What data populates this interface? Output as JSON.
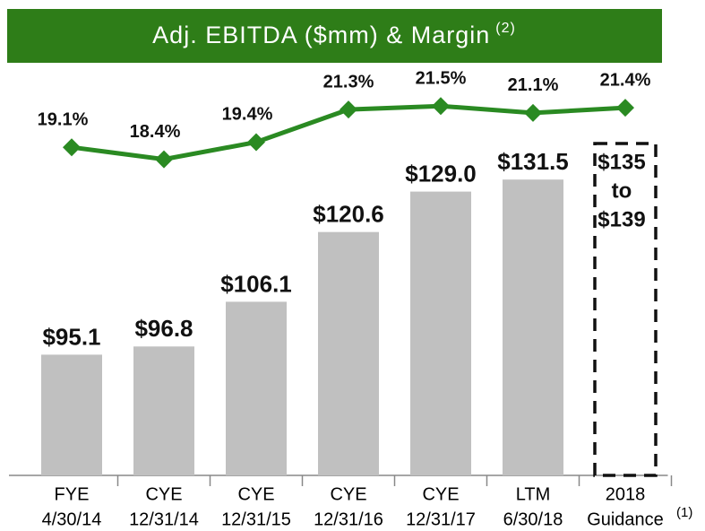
{
  "chart_data": {
    "type": "bar",
    "title": "Adj. EBITDA ($mm) & Margin",
    "title_note": "(2)",
    "categories": [
      [
        "FYE",
        "4/30/14"
      ],
      [
        "CYE",
        "12/31/14"
      ],
      [
        "CYE",
        "12/31/15"
      ],
      [
        "CYE",
        "12/31/16"
      ],
      [
        "CYE",
        "12/31/17"
      ],
      [
        "LTM",
        "6/30/18"
      ],
      [
        "2018",
        "Guidance"
      ]
    ],
    "category_note": "(1)",
    "ylim": [
      70,
      150
    ],
    "y2lim": [
      0,
      22.4
    ],
    "series": [
      {
        "name": "Adj. EBITDA",
        "type": "bar",
        "color": "#c0c0c0",
        "values": [
          95.1,
          96.8,
          106.1,
          120.6,
          129.0,
          131.5,
          null
        ],
        "value_labels": [
          "$95.1",
          "$96.8",
          "$106.1",
          "$120.6",
          "$129.0",
          "$131.5",
          null
        ]
      },
      {
        "name": "Margin",
        "type": "line",
        "axis": "y2",
        "color": "#2a8a22",
        "values": [
          19.1,
          18.4,
          19.4,
          21.3,
          21.5,
          21.1,
          21.4
        ],
        "value_labels": [
          "19.1%",
          "18.4%",
          "19.4%",
          "21.3%",
          "21.5%",
          "21.1%",
          "21.4%"
        ]
      }
    ],
    "guidance": {
      "low": 135,
      "high": 139,
      "label": [
        "$135",
        "to",
        "$139"
      ]
    }
  }
}
